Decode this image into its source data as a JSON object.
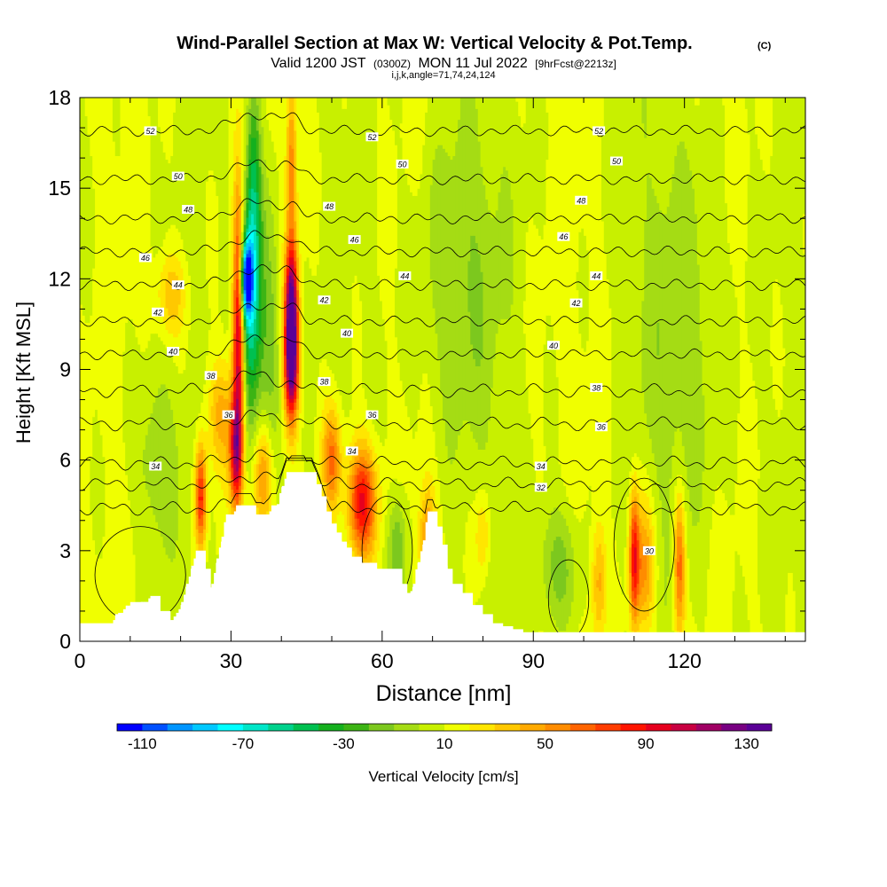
{
  "chart_data": {
    "type": "heatmap",
    "title": "Wind-Parallel Section at Max W: Vertical Velocity & Pot.Temp.",
    "title_mark": "(C)",
    "subtitle": {
      "valid": "Valid 1200 JST",
      "utc": "(0300Z)",
      "date": "MON 11 Jul 2022",
      "forecast": "[9hrFcst@2213z]"
    },
    "params": "i,j,k,angle=71,74,24,124",
    "xlabel": "Distance [nm]",
    "ylabel": "Height [Kft MSL]",
    "xlim": [
      0,
      144
    ],
    "ylim": [
      0,
      18
    ],
    "x_ticks": [
      "0",
      "30",
      "60",
      "90",
      "120"
    ],
    "y_ticks": [
      "0",
      "3",
      "6",
      "9",
      "12",
      "15",
      "18"
    ],
    "grid": false,
    "colorbar": {
      "label": "Vertical Velocity [cm/s]",
      "placement": "bottom",
      "tick_labels": [
        "-110",
        "-70",
        "-30",
        "10",
        "50",
        "90",
        "130"
      ],
      "tick_values": [
        -110,
        -70,
        -30,
        10,
        50,
        90,
        130
      ],
      "range": [
        -120,
        140
      ],
      "colors": [
        "#0000ff",
        "#0050ff",
        "#0095ff",
        "#00c8ff",
        "#00ffff",
        "#00e6c8",
        "#00d28c",
        "#00c050",
        "#14b01e",
        "#3cb414",
        "#7cc81e",
        "#a5dc14",
        "#c8f000",
        "#f0ff00",
        "#ffe600",
        "#ffc800",
        "#ffaa00",
        "#ff8c00",
        "#ff6400",
        "#ff3c00",
        "#ff1400",
        "#e6001e",
        "#c80041",
        "#a00064",
        "#780082",
        "#5a0096"
      ]
    },
    "background_w": 10,
    "w_features": [
      {
        "x": 31.5,
        "z": 10.5,
        "w": 110,
        "sx": 0.8,
        "sz": 3.0
      },
      {
        "x": 31.0,
        "z": 6.2,
        "w": 80,
        "sx": 0.9,
        "sz": 1.3
      },
      {
        "x": 33.0,
        "z": 12.0,
        "w": -100,
        "sx": 0.9,
        "sz": 0.9
      },
      {
        "x": 34.0,
        "z": 11.0,
        "w": -70,
        "sx": 1.6,
        "sz": 3.0
      },
      {
        "x": 34.5,
        "z": 15.5,
        "w": -35,
        "sx": 1.0,
        "sz": 2.5
      },
      {
        "x": 42.0,
        "z": 11.0,
        "w": 125,
        "sx": 0.9,
        "sz": 1.6
      },
      {
        "x": 42.0,
        "z": 9.0,
        "w": 90,
        "sx": 1.0,
        "sz": 1.3
      },
      {
        "x": 42.0,
        "z": 16.0,
        "w": 45,
        "sx": 0.7,
        "sz": 1.8
      },
      {
        "x": 38.0,
        "z": 10.0,
        "w": -25,
        "sx": 1.5,
        "sz": 3.5
      },
      {
        "x": 56.0,
        "z": 4.6,
        "w": 85,
        "sx": 2.0,
        "sz": 1.3
      },
      {
        "x": 50.0,
        "z": 6.0,
        "w": 55,
        "sx": 1.3,
        "sz": 1.2
      },
      {
        "x": 24.0,
        "z": 4.8,
        "w": 80,
        "sx": 0.8,
        "sz": 1.2
      },
      {
        "x": 36.5,
        "z": 5.5,
        "w": 45,
        "sx": 1.4,
        "sz": 1.2
      },
      {
        "x": 28.0,
        "z": 7.5,
        "w": 35,
        "sx": 2.0,
        "sz": 1.3
      },
      {
        "x": 18.0,
        "z": 11.5,
        "w": 30,
        "sx": 2.0,
        "sz": 1.0
      },
      {
        "x": 63.0,
        "z": 3.0,
        "w": -35,
        "sx": 1.3,
        "sz": 1.3
      },
      {
        "x": 95.0,
        "z": 2.5,
        "w": -28,
        "sx": 3.0,
        "sz": 1.5
      },
      {
        "x": 103.0,
        "z": 2.0,
        "w": 35,
        "sx": 1.0,
        "sz": 1.4
      },
      {
        "x": 110.0,
        "z": 2.8,
        "w": 70,
        "sx": 0.7,
        "sz": 1.6
      },
      {
        "x": 112.0,
        "z": 2.5,
        "w": 45,
        "sx": 1.5,
        "sz": 1.6
      },
      {
        "x": 119.0,
        "z": 2.5,
        "w": 60,
        "sx": 0.8,
        "sz": 1.6
      },
      {
        "x": 69.0,
        "z": 3.5,
        "w": 40,
        "sx": 1.2,
        "sz": 1.2
      },
      {
        "x": 80.0,
        "z": 3.5,
        "w": 25,
        "sx": 1.0,
        "sz": 1.0
      },
      {
        "x": 75.0,
        "z": 12.0,
        "w": -20,
        "sx": 6.0,
        "sz": 4.0
      },
      {
        "x": 120.0,
        "z": 10.0,
        "w": -18,
        "sx": 6.0,
        "sz": 5.0
      },
      {
        "x": 15.0,
        "z": 6.0,
        "w": -20,
        "sx": 3.0,
        "sz": 2.0
      }
    ],
    "terrain": {
      "x": [
        0,
        6,
        7,
        10,
        12,
        14,
        16,
        17,
        18,
        20,
        21,
        22,
        23,
        24,
        25,
        26,
        27,
        28,
        29,
        30,
        31,
        32,
        33,
        34,
        35,
        37,
        38,
        39,
        40,
        41,
        42,
        43,
        44,
        45,
        46,
        47,
        48,
        49,
        50,
        51,
        52,
        53,
        54,
        56,
        58,
        59,
        60,
        62,
        64,
        65,
        66,
        67,
        68,
        69,
        70,
        71,
        72,
        73,
        74,
        76,
        78,
        80,
        82,
        84,
        86,
        88,
        90,
        92,
        144
      ],
      "height": [
        0.6,
        0.6,
        0.9,
        1.3,
        1.3,
        1.5,
        1.0,
        1.0,
        0.7,
        1.2,
        1.8,
        2.4,
        3.0,
        3.0,
        2.4,
        1.7,
        2.6,
        3.3,
        4.2,
        4.2,
        4.5,
        4.5,
        4.5,
        4.5,
        4.2,
        4.2,
        4.5,
        4.5,
        5.1,
        5.6,
        5.6,
        5.6,
        5.6,
        5.6,
        5.6,
        5.2,
        4.8,
        4.3,
        3.9,
        3.6,
        3.3,
        3.1,
        2.8,
        2.6,
        2.6,
        2.4,
        2.4,
        2.4,
        1.9,
        1.6,
        1.8,
        2.6,
        3.2,
        4.3,
        4.3,
        3.8,
        3.2,
        2.4,
        1.9,
        1.6,
        1.2,
        0.9,
        0.6,
        0.5,
        0.4,
        0.3,
        0.3,
        0.3,
        0.3
      ]
    },
    "theta_contours": [
      {
        "value": 30,
        "label": "30",
        "h": 4.4
      },
      {
        "value": 32,
        "label": "32",
        "h": 5.2
      },
      {
        "value": 34,
        "label": "34",
        "h": 5.9
      },
      {
        "value": 36,
        "label": "36",
        "h": 7.2
      },
      {
        "value": 38,
        "label": "38",
        "h": 8.3
      },
      {
        "value": 40,
        "label": "40",
        "h": 9.5
      },
      {
        "value": 42,
        "label": "42",
        "h": 10.6
      },
      {
        "value": 44,
        "label": "44",
        "h": 11.8
      },
      {
        "value": 46,
        "label": "46",
        "h": 12.9
      },
      {
        "value": 48,
        "label": "48",
        "h": 14.0
      },
      {
        "value": 50,
        "label": "50",
        "h": 15.3
      },
      {
        "value": 52,
        "label": "52",
        "h": 16.9
      }
    ],
    "contour_labels": [
      {
        "text": "52",
        "x": 14.0,
        "y": 16.9
      },
      {
        "text": "52",
        "x": 58.0,
        "y": 16.7
      },
      {
        "text": "52",
        "x": 103.0,
        "y": 16.9
      },
      {
        "text": "50",
        "x": 19.5,
        "y": 15.4
      },
      {
        "text": "50",
        "x": 64.0,
        "y": 15.8
      },
      {
        "text": "50",
        "x": 106.5,
        "y": 15.9
      },
      {
        "text": "48",
        "x": 21.5,
        "y": 14.3
      },
      {
        "text": "48",
        "x": 49.5,
        "y": 14.4
      },
      {
        "text": "48",
        "x": 99.5,
        "y": 14.6
      },
      {
        "text": "46",
        "x": 13.0,
        "y": 12.7
      },
      {
        "text": "46",
        "x": 54.5,
        "y": 13.3
      },
      {
        "text": "46",
        "x": 96.0,
        "y": 13.4
      },
      {
        "text": "44",
        "x": 19.5,
        "y": 11.8
      },
      {
        "text": "44",
        "x": 64.5,
        "y": 12.1
      },
      {
        "text": "44",
        "x": 102.5,
        "y": 12.1
      },
      {
        "text": "42",
        "x": 15.5,
        "y": 10.9
      },
      {
        "text": "42",
        "x": 48.5,
        "y": 11.3
      },
      {
        "text": "42",
        "x": 98.5,
        "y": 11.2
      },
      {
        "text": "40",
        "x": 18.5,
        "y": 9.6
      },
      {
        "text": "40",
        "x": 53.0,
        "y": 10.2
      },
      {
        "text": "40",
        "x": 94.0,
        "y": 9.8
      },
      {
        "text": "38",
        "x": 26.0,
        "y": 8.8
      },
      {
        "text": "38",
        "x": 48.5,
        "y": 8.6
      },
      {
        "text": "38",
        "x": 102.5,
        "y": 8.4
      },
      {
        "text": "36",
        "x": 29.5,
        "y": 7.5
      },
      {
        "text": "36",
        "x": 58.0,
        "y": 7.5
      },
      {
        "text": "36",
        "x": 103.5,
        "y": 7.1
      },
      {
        "text": "34",
        "x": 15.0,
        "y": 5.8
      },
      {
        "text": "34",
        "x": 54.0,
        "y": 6.3
      },
      {
        "text": "34",
        "x": 91.5,
        "y": 5.8
      },
      {
        "text": "32",
        "x": 91.5,
        "y": 5.1
      },
      {
        "text": "30",
        "x": 113.0,
        "y": 3.0
      }
    ]
  }
}
